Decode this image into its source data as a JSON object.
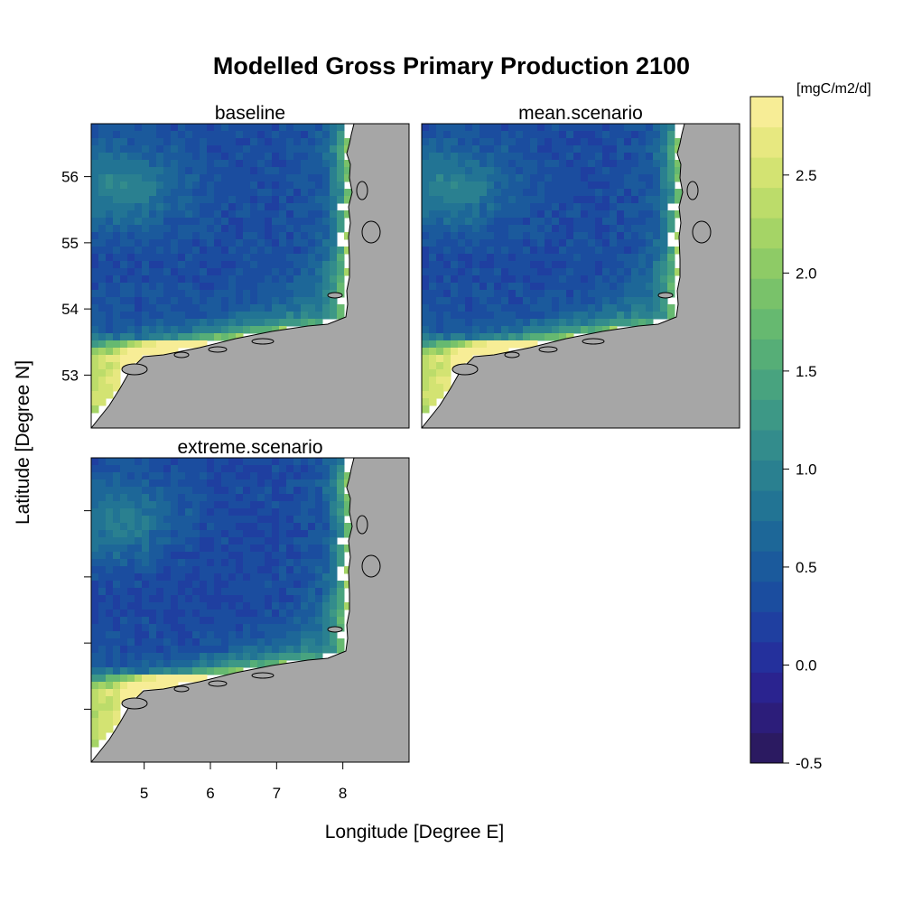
{
  "chart_data": {
    "type": "heatmap",
    "title": "Modelled Gross Primary Production 2100",
    "xlabel": "Longitude [Degree E]",
    "ylabel": "Latitude [Degree N]",
    "xlim": [
      4.2,
      9.0
    ],
    "ylim": [
      52.2,
      56.8
    ],
    "x_ticks": [
      5,
      6,
      7,
      8
    ],
    "y_ticks": [
      53,
      54,
      55,
      56
    ],
    "panels": [
      {
        "name": "baseline",
        "scenario": "baseline"
      },
      {
        "name": "mean.scenario",
        "scenario": "mean"
      },
      {
        "name": "extreme.scenario",
        "scenario": "extreme"
      }
    ],
    "colorbar": {
      "unit_label": "[mgC/m2/d]",
      "min": -0.5,
      "max": 2.9,
      "tick_values": [
        -0.5,
        0.0,
        0.5,
        1.0,
        1.5,
        2.0,
        2.5
      ],
      "tick_labels": [
        "-0.5",
        "0.0",
        "0.5",
        "1.0",
        "1.5",
        "2.0",
        "2.5"
      ],
      "colors": [
        "#2b1a61",
        "#2c1d7a",
        "#2a238f",
        "#24309c",
        "#1f3fa0",
        "#1b4d9f",
        "#1b5a9c",
        "#1d6798",
        "#227494",
        "#2a8090",
        "#338c8c",
        "#3d9886",
        "#48a37f",
        "#56ae77",
        "#66b970",
        "#79c26a",
        "#8ecb66",
        "#a5d466",
        "#bcdc6a",
        "#d3e372",
        "#e7e880",
        "#f7ed96"
      ]
    },
    "land_color": "#a6a6a6",
    "background": "#ffffff"
  }
}
